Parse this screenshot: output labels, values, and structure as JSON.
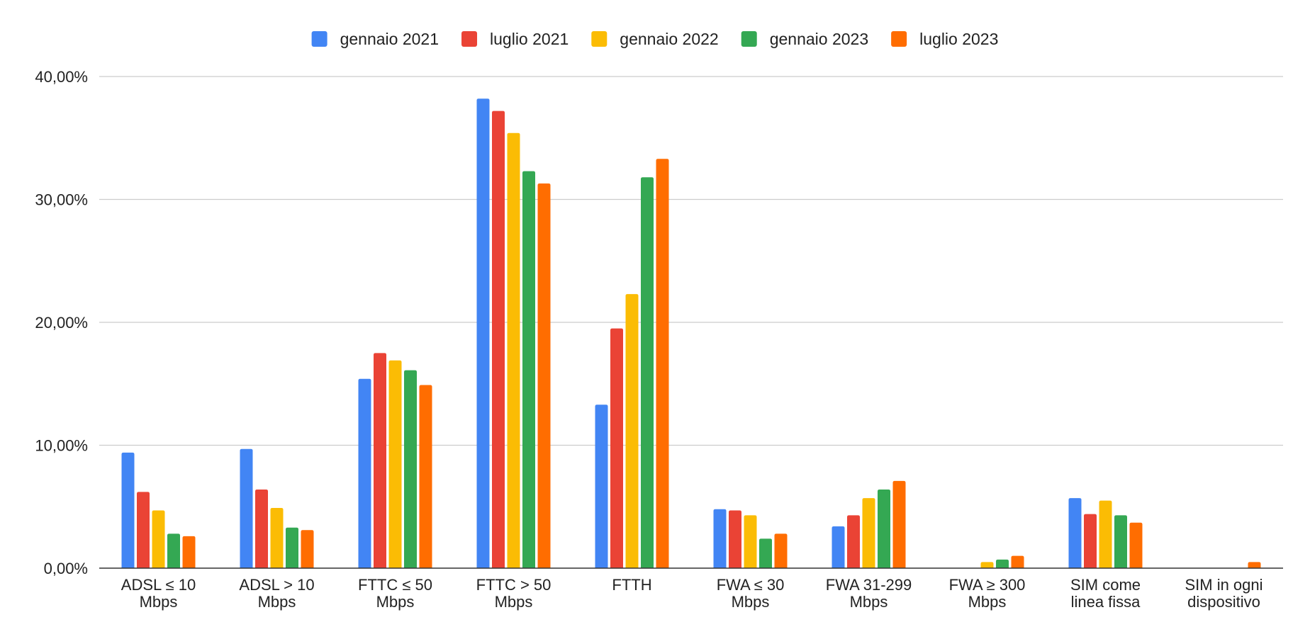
{
  "chart_data": {
    "type": "bar",
    "categories": [
      [
        "ADSL ≤ 10",
        "Mbps"
      ],
      [
        "ADSL > 10",
        "Mbps"
      ],
      [
        "FTTC ≤ 50",
        "Mbps"
      ],
      [
        "FTTC > 50",
        "Mbps"
      ],
      [
        "FTTH"
      ],
      [
        "FWA ≤ 30",
        "Mbps"
      ],
      [
        "FWA 31-299",
        "Mbps"
      ],
      [
        "FWA ≥ 300",
        "Mbps"
      ],
      [
        "SIM come",
        "linea fissa"
      ],
      [
        "SIM in ogni",
        "dispositivo"
      ]
    ],
    "series": [
      {
        "name": "gennaio 2021",
        "color": "#4285F4",
        "values": [
          9.4,
          9.7,
          15.4,
          38.2,
          13.3,
          4.8,
          3.4,
          0.0,
          5.7,
          0.0
        ]
      },
      {
        "name": "luglio 2021",
        "color": "#EA4335",
        "values": [
          6.2,
          6.4,
          17.5,
          37.2,
          19.5,
          4.7,
          4.3,
          0.0,
          4.4,
          0.0
        ]
      },
      {
        "name": "gennaio 2022",
        "color": "#FBBC04",
        "values": [
          4.7,
          4.9,
          16.9,
          35.4,
          22.3,
          4.3,
          5.7,
          0.5,
          5.5,
          0.0
        ]
      },
      {
        "name": "gennaio 2023",
        "color": "#34A853",
        "values": [
          2.8,
          3.3,
          16.1,
          32.3,
          31.8,
          2.4,
          6.4,
          0.7,
          4.3,
          0.0
        ]
      },
      {
        "name": "luglio 2023",
        "color": "#FF6D01",
        "values": [
          2.6,
          3.1,
          14.9,
          31.3,
          33.3,
          2.8,
          7.1,
          1.0,
          3.7,
          0.5
        ]
      }
    ],
    "y_ticks": [
      {
        "value": 0,
        "label": "0,00%"
      },
      {
        "value": 10,
        "label": "10,00%"
      },
      {
        "value": 20,
        "label": "20,00%"
      },
      {
        "value": 30,
        "label": "30,00%"
      },
      {
        "value": 40,
        "label": "40,00%"
      }
    ],
    "ylim": [
      0,
      40
    ],
    "grid": true,
    "legend_position": "top-center"
  }
}
